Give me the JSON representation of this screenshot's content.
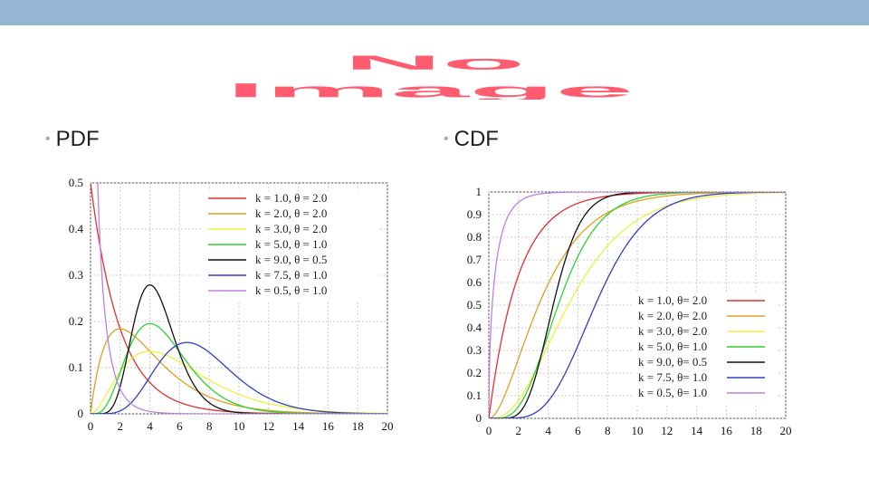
{
  "slide": {
    "header_color": "#94b6d2",
    "placeholder_text": [
      "No",
      "Image"
    ],
    "bullets": [
      "PDF",
      "CDF"
    ]
  },
  "chart_data": [
    {
      "type": "line",
      "title": "",
      "xlabel": "",
      "ylabel": "",
      "xlim": [
        0,
        20
      ],
      "ylim": [
        0,
        0.5
      ],
      "xticks": [
        0,
        2,
        4,
        6,
        8,
        10,
        12,
        14,
        16,
        18,
        20
      ],
      "yticks": [
        0,
        0.1,
        0.2,
        0.3,
        0.4,
        0.5
      ],
      "ytick_labels": [
        "0",
        "0.1",
        "0.2",
        "0.3",
        "0.4",
        "0.5"
      ],
      "grid": true,
      "legend_position": "top-right",
      "series": [
        {
          "name": "k = 1.0, θ = 2.0",
          "k": 1.0,
          "theta": 2.0,
          "color": "#e03030"
        },
        {
          "name": "k = 2.0, θ = 2.0",
          "k": 2.0,
          "theta": 2.0,
          "color": "#e0a020"
        },
        {
          "name": "k = 3.0, θ = 2.0",
          "k": 3.0,
          "theta": 2.0,
          "color": "#f0f040"
        },
        {
          "name": "k = 5.0, θ = 1.0",
          "k": 5.0,
          "theta": 1.0,
          "color": "#30d030"
        },
        {
          "name": "k = 9.0, θ = 0.5",
          "k": 9.0,
          "theta": 0.5,
          "color": "#111111"
        },
        {
          "name": "k = 7.5, θ = 1.0",
          "k": 7.5,
          "theta": 1.0,
          "color": "#3040c0"
        },
        {
          "name": "k = 0.5, θ = 1.0",
          "k": 0.5,
          "theta": 1.0,
          "color": "#c080e0"
        }
      ]
    },
    {
      "type": "line",
      "title": "",
      "xlabel": "",
      "ylabel": "",
      "xlim": [
        0,
        20
      ],
      "ylim": [
        0,
        1
      ],
      "xticks": [
        0,
        2,
        4,
        6,
        8,
        10,
        12,
        14,
        16,
        18,
        20
      ],
      "yticks": [
        0,
        0.1,
        0.2,
        0.3,
        0.4,
        0.5,
        0.6,
        0.7,
        0.8,
        0.9,
        1
      ],
      "ytick_labels": [
        "0",
        "0.1",
        "0.2",
        "0.3",
        "0.4",
        "0.5",
        "0.6",
        "0.7",
        "0.8",
        "0.9",
        "1"
      ],
      "grid": true,
      "legend_position": "bottom-right",
      "series": [
        {
          "name": "k = 1.0, θ= 2.0",
          "k": 1.0,
          "theta": 2.0,
          "color": "#e03030"
        },
        {
          "name": "k = 2.0, θ= 2.0",
          "k": 2.0,
          "theta": 2.0,
          "color": "#e0a020"
        },
        {
          "name": "k = 3.0, θ= 2.0",
          "k": 3.0,
          "theta": 2.0,
          "color": "#f0f040"
        },
        {
          "name": "k = 5.0, θ= 1.0",
          "k": 5.0,
          "theta": 1.0,
          "color": "#30d030"
        },
        {
          "name": "k = 9.0, θ= 0.5",
          "k": 9.0,
          "theta": 0.5,
          "color": "#111111"
        },
        {
          "name": "k = 7.5, θ= 1.0",
          "k": 7.5,
          "theta": 1.0,
          "color": "#3040c0"
        },
        {
          "name": "k = 0.5, θ= 1.0",
          "k": 0.5,
          "theta": 1.0,
          "color": "#c080e0"
        }
      ]
    }
  ]
}
